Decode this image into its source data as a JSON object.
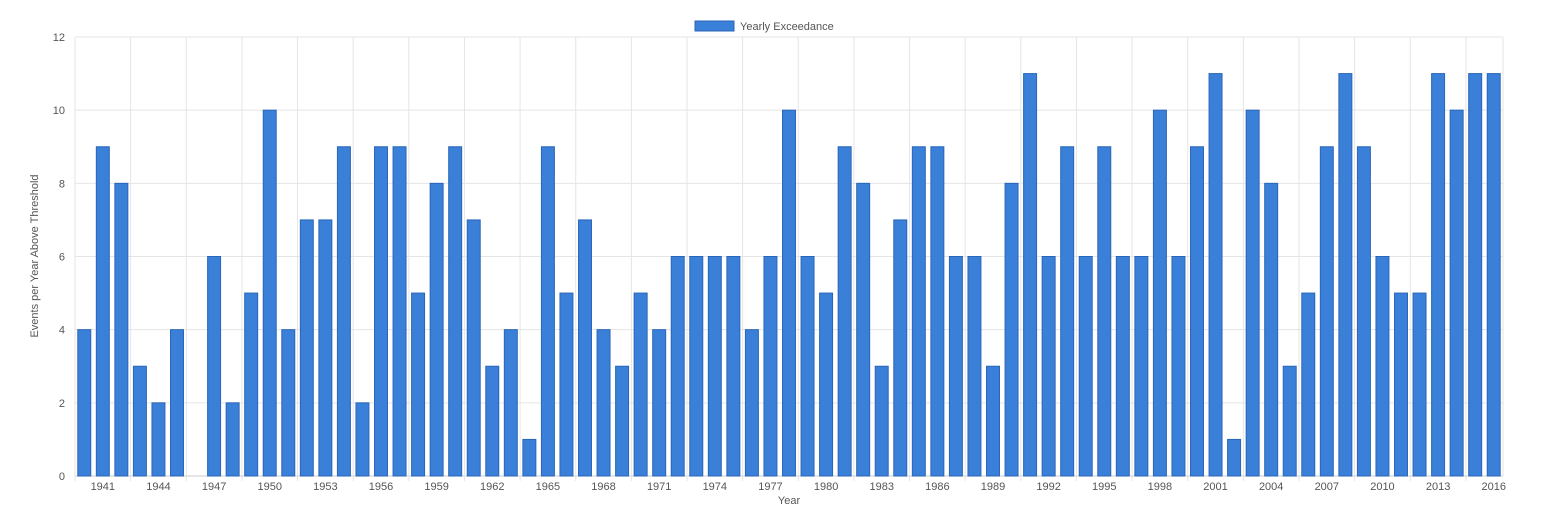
{
  "chart_data": {
    "type": "bar",
    "legend": {
      "label": "Yearly Exceedance",
      "position": "top-center"
    },
    "xlabel": "Year",
    "ylabel": "Events per Year Above Threshold",
    "ylim": [
      0,
      12
    ],
    "y_ticks": [
      0,
      2,
      4,
      6,
      8,
      10,
      12
    ],
    "grid": true,
    "bar_color": "#3a7fd8",
    "bar_border_color": "#2a66b8",
    "categories": [
      1940,
      1941,
      1942,
      1943,
      1944,
      1945,
      1946,
      1947,
      1948,
      1949,
      1950,
      1951,
      1952,
      1953,
      1954,
      1955,
      1956,
      1957,
      1958,
      1959,
      1960,
      1961,
      1962,
      1963,
      1964,
      1965,
      1966,
      1967,
      1968,
      1969,
      1970,
      1971,
      1972,
      1973,
      1974,
      1975,
      1976,
      1977,
      1978,
      1979,
      1980,
      1981,
      1982,
      1983,
      1984,
      1985,
      1986,
      1987,
      1988,
      1989,
      1990,
      1991,
      1992,
      1993,
      1994,
      1995,
      1996,
      1997,
      1998,
      1999,
      2000,
      2001,
      2002,
      2003,
      2004,
      2005,
      2006,
      2007,
      2008,
      2009,
      2010,
      2011,
      2012,
      2013,
      2014,
      2015,
      2016
    ],
    "x_tick_labels": [
      1941,
      1944,
      1947,
      1950,
      1953,
      1956,
      1959,
      1962,
      1965,
      1968,
      1971,
      1974,
      1977,
      1980,
      1983,
      1986,
      1989,
      1992,
      1995,
      1998,
      2001,
      2004,
      2007,
      2010,
      2013,
      2016
    ],
    "series": [
      {
        "name": "Yearly Exceedance",
        "values": [
          4,
          9,
          8,
          3,
          2,
          4,
          0,
          6,
          2,
          5,
          10,
          4,
          7,
          7,
          9,
          2,
          9,
          9,
          5,
          8,
          9,
          7,
          3,
          4,
          1,
          9,
          5,
          7,
          4,
          3,
          5,
          4,
          6,
          6,
          6,
          6,
          4,
          6,
          10,
          6,
          5,
          9,
          8,
          3,
          7,
          9,
          9,
          6,
          6,
          3,
          8,
          11,
          6,
          9,
          6,
          9,
          6,
          6,
          10,
          6,
          9,
          11,
          1,
          10,
          8,
          3,
          5,
          9,
          11,
          9,
          6,
          5,
          5,
          11,
          10,
          11,
          11
        ]
      }
    ]
  }
}
